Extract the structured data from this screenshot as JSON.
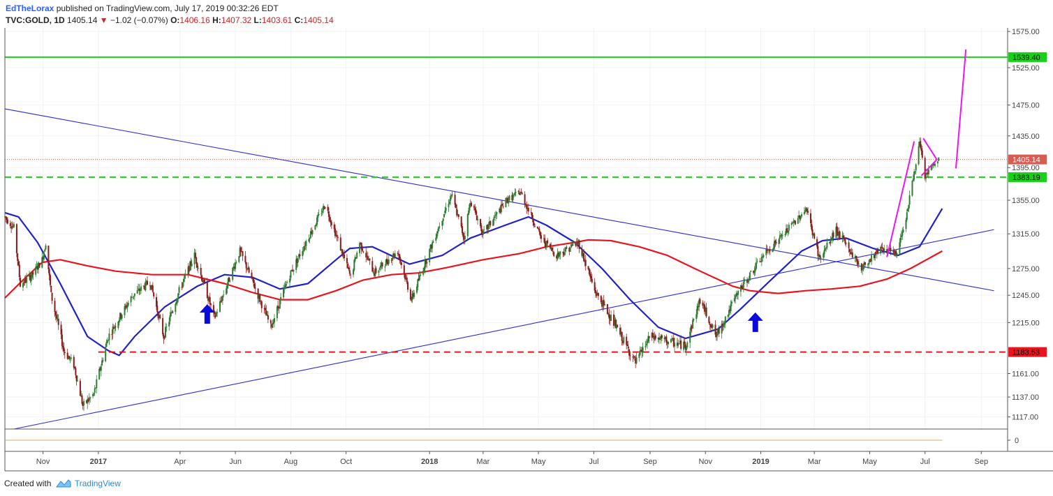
{
  "header": {
    "author": "EdTheLorax",
    "published_text": "published on TradingView.com, July 17, 2019 00:32:26 EDT",
    "symbol": "TVC:GOLD, 1D",
    "last": "1405.14",
    "change": "−1.02 (−0.07%)",
    "o_label": "O:",
    "o_value": "1406.16",
    "h_label": "H:",
    "h_value": "1407.32",
    "l_label": "L:",
    "l_value": "1403.61",
    "c_label": "C:",
    "c_value": "1405.14"
  },
  "footer": {
    "created_with": "Created with",
    "brand": "TradingView"
  },
  "colors": {
    "candle_up": "#2e7d32",
    "candle_down": "#8b1a1a",
    "ma_fast": "#1e22c8",
    "ma_slow": "#e8141e",
    "resistance": "#17d017",
    "support": "#e8141e",
    "forecast": "#ee14ee",
    "trendline": "#2a2ad6",
    "arrow": "#0a0adc",
    "price_label": "#d65c52"
  },
  "chart_data": {
    "type": "candlestick",
    "title": "",
    "y_axis": {
      "ticks": [
        "1575.00",
        "1525.00",
        "1475.00",
        "1435.00",
        "1395.00",
        "1355.00",
        "1315.00",
        "1275.00",
        "1245.00",
        "1215.00",
        "1161.00",
        "1137.00",
        "1117.00"
      ],
      "scale": "log",
      "range": [
        1105,
        1580
      ]
    },
    "x_axis": {
      "ticks": [
        {
          "label": "Nov",
          "date": "2016-11-01",
          "bold": false
        },
        {
          "label": "2017",
          "date": "2017-01-01",
          "bold": true
        },
        {
          "label": "Apr",
          "date": "2017-04-01",
          "bold": false
        },
        {
          "label": "Jun",
          "date": "2017-06-01",
          "bold": false
        },
        {
          "label": "Aug",
          "date": "2017-08-01",
          "bold": false
        },
        {
          "label": "Oct",
          "date": "2017-10-01",
          "bold": false
        },
        {
          "label": "2018",
          "date": "2018-01-01",
          "bold": true
        },
        {
          "label": "Mar",
          "date": "2018-03-01",
          "bold": false
        },
        {
          "label": "May",
          "date": "2018-05-01",
          "bold": false
        },
        {
          "label": "Jul",
          "date": "2018-07-01",
          "bold": false
        },
        {
          "label": "Sep",
          "date": "2018-09-01",
          "bold": false
        },
        {
          "label": "Nov",
          "date": "2018-11-01",
          "bold": false
        },
        {
          "label": "2019",
          "date": "2019-01-01",
          "bold": true
        },
        {
          "label": "Mar",
          "date": "2019-03-01",
          "bold": false
        },
        {
          "label": "May",
          "date": "2019-05-01",
          "bold": false
        },
        {
          "label": "Jul",
          "date": "2019-07-01",
          "bold": false
        },
        {
          "label": "Sep",
          "date": "2019-09-01",
          "bold": false
        }
      ]
    },
    "price_path": [
      [
        "2016-09-20",
        1335
      ],
      [
        "2016-09-30",
        1322
      ],
      [
        "2016-10-07",
        1257
      ],
      [
        "2016-10-20",
        1267
      ],
      [
        "2016-10-31",
        1285
      ],
      [
        "2016-11-04",
        1305
      ],
      [
        "2016-11-10",
        1245
      ],
      [
        "2016-11-24",
        1185
      ],
      [
        "2016-12-05",
        1170
      ],
      [
        "2016-12-15",
        1128
      ],
      [
        "2016-12-27",
        1140
      ],
      [
        "2017-01-12",
        1200
      ],
      [
        "2017-02-08",
        1245
      ],
      [
        "2017-02-27",
        1260
      ],
      [
        "2017-03-14",
        1200
      ],
      [
        "2017-03-31",
        1250
      ],
      [
        "2017-04-17",
        1290
      ],
      [
        "2017-05-09",
        1220
      ],
      [
        "2017-06-06",
        1295
      ],
      [
        "2017-07-10",
        1210
      ],
      [
        "2017-07-31",
        1268
      ],
      [
        "2017-09-08",
        1350
      ],
      [
        "2017-10-06",
        1265
      ],
      [
        "2017-10-16",
        1305
      ],
      [
        "2017-11-01",
        1270
      ],
      [
        "2017-11-27",
        1295
      ],
      [
        "2017-12-12",
        1240
      ],
      [
        "2018-01-25",
        1362
      ],
      [
        "2018-02-08",
        1310
      ],
      [
        "2018-02-15",
        1355
      ],
      [
        "2018-03-01",
        1315
      ],
      [
        "2018-03-27",
        1355
      ],
      [
        "2018-04-11",
        1365
      ],
      [
        "2018-05-04",
        1310
      ],
      [
        "2018-05-21",
        1290
      ],
      [
        "2018-06-14",
        1305
      ],
      [
        "2018-07-02",
        1250
      ],
      [
        "2018-07-20",
        1220
      ],
      [
        "2018-08-16",
        1172
      ],
      [
        "2018-09-01",
        1200
      ],
      [
        "2018-10-10",
        1190
      ],
      [
        "2018-10-26",
        1240
      ],
      [
        "2018-11-13",
        1200
      ],
      [
        "2018-12-07",
        1248
      ],
      [
        "2019-01-04",
        1290
      ],
      [
        "2019-01-31",
        1320
      ],
      [
        "2019-02-20",
        1345
      ],
      [
        "2019-03-07",
        1285
      ],
      [
        "2019-03-25",
        1320
      ],
      [
        "2019-04-22",
        1275
      ],
      [
        "2019-05-14",
        1300
      ],
      [
        "2019-05-30",
        1290
      ],
      [
        "2019-06-11",
        1340
      ],
      [
        "2019-06-25",
        1425
      ],
      [
        "2019-07-01",
        1385
      ],
      [
        "2019-07-16",
        1405.14
      ]
    ],
    "series": [
      {
        "name": "",
        "color_key": "ma_fast",
        "points": [
          [
            "2016-09-20",
            1340
          ],
          [
            "2016-10-05",
            1335
          ],
          [
            "2016-10-26",
            1305
          ],
          [
            "2016-11-20",
            1258
          ],
          [
            "2016-12-20",
            1200
          ],
          [
            "2017-01-12",
            1185
          ],
          [
            "2017-01-24",
            1180
          ],
          [
            "2017-02-10",
            1200
          ],
          [
            "2017-03-15",
            1232
          ],
          [
            "2017-04-20",
            1255
          ],
          [
            "2017-05-20",
            1268
          ],
          [
            "2017-06-20",
            1265
          ],
          [
            "2017-07-20",
            1252
          ],
          [
            "2017-08-20",
            1258
          ],
          [
            "2017-09-20",
            1285
          ],
          [
            "2017-10-05",
            1298
          ],
          [
            "2017-10-30",
            1300
          ],
          [
            "2017-12-10",
            1280
          ],
          [
            "2018-01-15",
            1290
          ],
          [
            "2018-02-15",
            1310
          ],
          [
            "2018-03-25",
            1325
          ],
          [
            "2018-04-20",
            1335
          ],
          [
            "2018-05-10",
            1325
          ],
          [
            "2018-06-10",
            1305
          ],
          [
            "2018-07-10",
            1275
          ],
          [
            "2018-08-10",
            1240
          ],
          [
            "2018-09-10",
            1210
          ],
          [
            "2018-10-10",
            1198
          ],
          [
            "2018-11-15",
            1208
          ],
          [
            "2018-12-10",
            1230
          ],
          [
            "2019-01-10",
            1260
          ],
          [
            "2019-02-15",
            1295
          ],
          [
            "2019-03-10",
            1307
          ],
          [
            "2019-04-05",
            1310
          ],
          [
            "2019-05-05",
            1298
          ],
          [
            "2019-06-01",
            1290
          ],
          [
            "2019-06-25",
            1300
          ],
          [
            "2019-07-20",
            1345
          ]
        ]
      },
      {
        "name": "",
        "color_key": "ma_slow",
        "points": [
          [
            "2016-09-20",
            1242
          ],
          [
            "2016-10-10",
            1262
          ],
          [
            "2016-10-31",
            1282
          ],
          [
            "2016-11-20",
            1285
          ],
          [
            "2016-12-20",
            1278
          ],
          [
            "2017-01-20",
            1272
          ],
          [
            "2017-03-01",
            1268
          ],
          [
            "2017-04-10",
            1268
          ],
          [
            "2017-05-20",
            1258
          ],
          [
            "2017-06-20",
            1248
          ],
          [
            "2017-07-20",
            1240
          ],
          [
            "2017-08-20",
            1240
          ],
          [
            "2017-09-20",
            1250
          ],
          [
            "2017-10-20",
            1262
          ],
          [
            "2017-11-20",
            1268
          ],
          [
            "2017-12-20",
            1270
          ],
          [
            "2018-01-20",
            1276
          ],
          [
            "2018-03-01",
            1285
          ],
          [
            "2018-04-10",
            1292
          ],
          [
            "2018-05-10",
            1300
          ],
          [
            "2018-06-10",
            1305
          ],
          [
            "2018-06-25",
            1308
          ],
          [
            "2018-07-20",
            1307
          ],
          [
            "2018-08-20",
            1300
          ],
          [
            "2018-09-20",
            1290
          ],
          [
            "2018-10-20",
            1275
          ],
          [
            "2018-12-01",
            1255
          ],
          [
            "2018-12-20",
            1250
          ],
          [
            "2019-01-20",
            1247
          ],
          [
            "2019-02-20",
            1250
          ],
          [
            "2019-03-20",
            1252
          ],
          [
            "2019-04-20",
            1255
          ],
          [
            "2019-05-20",
            1263
          ],
          [
            "2019-06-15",
            1275
          ],
          [
            "2019-07-20",
            1295
          ]
        ]
      }
    ],
    "horizontal_levels": [
      {
        "value": 1539.4,
        "label": "1539.40",
        "style": "solid",
        "color_key": "resistance"
      },
      {
        "value": 1383.19,
        "label": "1383.19",
        "style": "dashed",
        "color_key": "resistance"
      },
      {
        "value": 1183.53,
        "label": "1183.53",
        "style": "dashed",
        "color_key": "support"
      },
      {
        "value": 1405.14,
        "label": "1405.14",
        "style": "dotted",
        "color_key": "price_label"
      }
    ],
    "trendlines": [
      {
        "from": [
          "2016-09-20",
          1470
        ],
        "to": [
          "2019-09-15",
          1250
        ],
        "color_key": "trendline"
      },
      {
        "from": [
          "2016-09-30",
          1105
        ],
        "to": [
          "2019-09-15",
          1320
        ],
        "color_key": "trendline"
      }
    ],
    "forecast_lines": [
      {
        "from": [
          "2019-05-20",
          1288
        ],
        "to": [
          "2019-06-19",
          1428
        ]
      },
      {
        "from": [
          "2019-06-29",
          1432
        ],
        "to": [
          "2019-07-14",
          1405
        ]
      },
      {
        "from": [
          "2019-07-14",
          1405
        ],
        "to": [
          "2019-06-27",
          1385
        ]
      },
      {
        "from": [
          "2019-08-04",
          1394
        ],
        "to": [
          "2019-08-15",
          1550
        ]
      }
    ],
    "annotations": [
      {
        "type": "arrow_up",
        "date": "2017-05-01",
        "value": 1235
      },
      {
        "type": "arrow_up",
        "date": "2018-12-26",
        "value": 1226
      }
    ],
    "indicator": {
      "label": "0",
      "value": 0
    }
  }
}
